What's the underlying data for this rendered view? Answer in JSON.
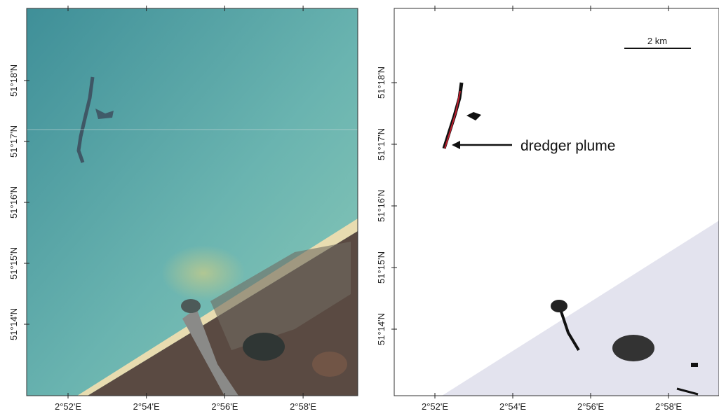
{
  "panels": [
    {
      "x_labels": [
        "2°52'E",
        "2°54'E",
        "2°56'E",
        "2°58'E"
      ],
      "y_labels": [
        "51°18'N",
        "51°17'N",
        "51°16'N",
        "51°15'N",
        "51°14'N"
      ]
    },
    {
      "x_labels": [
        "2°52'E",
        "2°54'E",
        "2°56'E",
        "2°58'E"
      ],
      "y_labels": [
        "51°18'N",
        "51°17'N",
        "51°16'N",
        "51°15'N",
        "51°14'N"
      ],
      "annotation": "dredger plume",
      "scale_bar": "2 km"
    }
  ]
}
